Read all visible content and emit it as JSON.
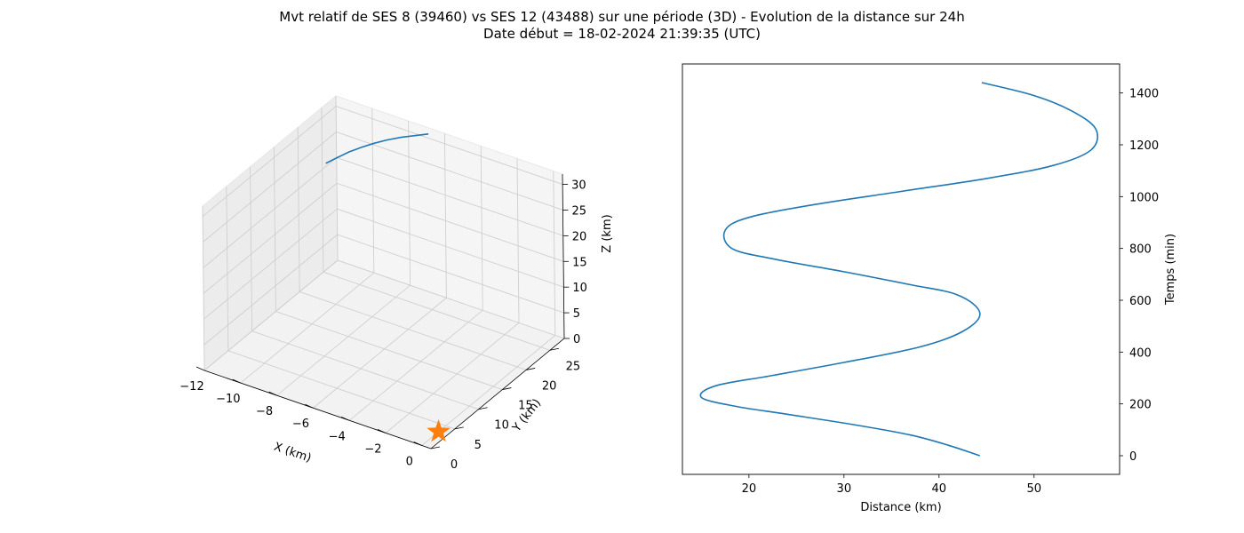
{
  "header": {
    "title": "Mvt relatif de SES 8 (39460) vs SES 12 (43488) sur une période (3D) - Evolution de la distance sur 24h",
    "subtitle": "Date début = 18-02-2024 21:39:35 (UTC)"
  },
  "colors": {
    "series": "#1f77b4",
    "marker": "#ff7f0e",
    "pane": "#f2f2f2",
    "grid": "#d0d0d0"
  },
  "chart_data": [
    {
      "type": "line3d",
      "xlabel": "X (km)",
      "ylabel": "Y (km)",
      "zlabel": "Z (km)",
      "xlim": [
        -12,
        0.5
      ],
      "ylim": [
        0,
        28
      ],
      "zlim": [
        0,
        32
      ],
      "xticks": [
        "−12",
        "−10",
        "−8",
        "−6",
        "−4",
        "−2",
        "0"
      ],
      "yticks": [
        "0",
        "5",
        "10",
        "15",
        "20",
        "25"
      ],
      "zticks": [
        "0",
        "5",
        "10",
        "15",
        "20",
        "25",
        "30"
      ],
      "grid": true,
      "series": [
        {
          "points": [
            {
              "x": -11.0,
              "y": 22.0,
              "z": 24.7
            },
            {
              "x": -10.6,
              "y": 22.9,
              "z": 25.6
            },
            {
              "x": -10.2,
              "y": 23.8,
              "z": 26.5
            },
            {
              "x": -9.7,
              "y": 24.6,
              "z": 27.4
            },
            {
              "x": -9.2,
              "y": 25.4,
              "z": 28.2
            },
            {
              "x": -8.7,
              "y": 26.1,
              "z": 28.9
            },
            {
              "x": -8.1,
              "y": 26.8,
              "z": 29.6
            },
            {
              "x": -7.5,
              "y": 27.4,
              "z": 30.2
            },
            {
              "x": -6.9,
              "y": 28.0,
              "z": 30.8
            }
          ]
        }
      ],
      "markers": [
        {
          "shape": "star",
          "x": 0,
          "y": 3.5,
          "z": 0
        }
      ]
    },
    {
      "type": "line",
      "xlabel": "Distance (km)",
      "ylabel": "Temps (min)",
      "xlim": [
        13,
        59
      ],
      "ylim": [
        -72,
        1512
      ],
      "xticks": [
        20,
        30,
        40,
        50
      ],
      "yticks": [
        0,
        200,
        400,
        600,
        800,
        1000,
        1200,
        1400
      ],
      "grid": false,
      "series": [
        {
          "x": [
            44.3,
            41.0,
            37.0,
            31.0,
            24.0,
            18.7,
            15.0,
            16.5,
            22.5,
            30.0,
            38.0,
            42.5,
            44.3,
            42.0,
            37.0,
            30.0,
            22.5,
            18.2,
            17.5,
            20.0,
            27.0,
            36.0,
            45.0,
            52.0,
            56.0,
            56.5,
            54.0,
            50.0,
            44.5
          ],
          "y": [
            0,
            40,
            80,
            120,
            160,
            190,
            225,
            270,
            310,
            360,
            420,
            480,
            550,
            620,
            660,
            710,
            760,
            800,
            870,
            920,
            970,
            1020,
            1070,
            1120,
            1180,
            1260,
            1330,
            1390,
            1440
          ]
        }
      ]
    }
  ]
}
